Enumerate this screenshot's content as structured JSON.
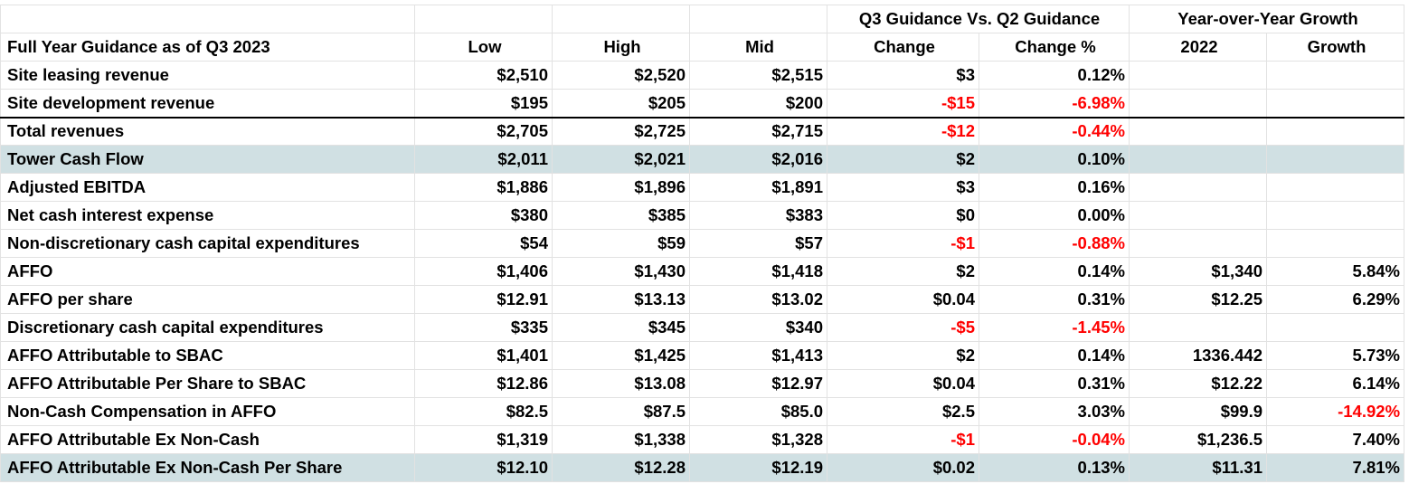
{
  "group_headers": [
    "Q3 Guidance Vs. Q2 Guidance",
    "Year-over-Year Growth"
  ],
  "negative_color": "#ff0000",
  "table": {
    "columns": [
      "Full Year Guidance as of Q3 2023",
      "Low",
      "High",
      "Mid",
      "Change",
      "Change %",
      "2022",
      "Growth"
    ],
    "rows": [
      [
        "Site leasing revenue",
        "$2,510",
        "$2,520",
        "$2,515",
        "$3",
        "0.12%",
        null,
        null
      ],
      [
        "Site development revenue",
        "$195",
        "$205",
        "$200",
        "-$15",
        "-6.98%",
        null,
        null
      ],
      [
        "Total revenues",
        "$2,705",
        "$2,725",
        "$2,715",
        "-$12",
        "-0.44%",
        null,
        null
      ],
      [
        "Tower Cash Flow",
        "$2,011",
        "$2,021",
        "$2,016",
        "$2",
        "0.10%",
        null,
        null
      ],
      [
        "Adjusted EBITDA",
        "$1,886",
        "$1,896",
        "$1,891",
        "$3",
        "0.16%",
        null,
        null
      ],
      [
        "Net cash interest expense",
        "$380",
        "$385",
        "$383",
        "$0",
        "0.00%",
        null,
        null
      ],
      [
        "Non-discretionary cash capital expenditures",
        "$54",
        "$59",
        "$57",
        "-$1",
        "-0.88%",
        null,
        null
      ],
      [
        "AFFO",
        "$1,406",
        "$1,430",
        "$1,418",
        "$2",
        "0.14%",
        "$1,340",
        "5.84%"
      ],
      [
        "AFFO per share",
        "$12.91",
        "$13.13",
        "$13.02",
        "$0.04",
        "0.31%",
        "$12.25",
        "6.29%"
      ],
      [
        "Discretionary cash capital expenditures",
        "$335",
        "$345",
        "$340",
        "-$5",
        "-1.45%",
        null,
        null
      ],
      [
        "AFFO Attributable to SBAC",
        "$1,401",
        "$1,425",
        "$1,413",
        "$2",
        "0.14%",
        "1336.442",
        "5.73%"
      ],
      [
        "AFFO Attributable Per Share to SBAC",
        "$12.86",
        "$13.08",
        "$12.97",
        "$0.04",
        "0.31%",
        "$12.22",
        "6.14%"
      ],
      [
        "Non-Cash Compensation in AFFO",
        "$82.5",
        "$87.5",
        "$85.0",
        "$2.5",
        "3.03%",
        "$99.9",
        "-14.92%"
      ],
      [
        "AFFO Attributable Ex Non-Cash",
        "$1,319",
        "$1,338",
        "$1,328",
        "-$1",
        "-0.04%",
        "$1,236.5",
        "7.40%"
      ],
      [
        "AFFO Attributable Ex Non-Cash Per Share",
        "$12.10",
        "$12.28",
        "$12.19",
        "$0.02",
        "0.13%",
        "$11.31",
        "7.81%"
      ]
    ]
  }
}
